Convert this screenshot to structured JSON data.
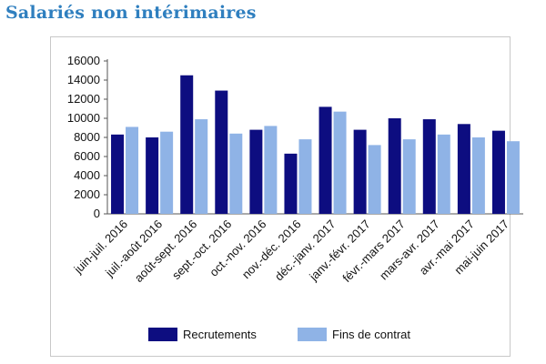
{
  "title": "Salariés non intérimaires",
  "chart_data": {
    "type": "bar",
    "categories": [
      "juin-juil. 2016",
      "juil.-août 2016",
      "août-sept. 2016",
      "sept.-oct. 2016",
      "oct.-nov. 2016",
      "nov.-déc. 2016",
      "déc.-janv. 2017",
      "janv.-févr. 2017",
      "févr.-mars 2017",
      "mars-avr. 2017",
      "avr.-mai 2017",
      "mai-juin 2017"
    ],
    "series": [
      {
        "name": "Recrutements",
        "color": "#0d0d80",
        "values": [
          8300,
          8000,
          14500,
          12900,
          8800,
          6300,
          11200,
          8800,
          10000,
          9900,
          9400,
          8700
        ]
      },
      {
        "name": "Fins de contrat",
        "color": "#8fb3e6",
        "values": [
          9100,
          8600,
          9900,
          8400,
          9200,
          7800,
          10700,
          7200,
          7800,
          8300,
          8000,
          7600
        ]
      }
    ],
    "ylim": [
      0,
      16000
    ],
    "yticks": [
      0,
      2000,
      4000,
      6000,
      8000,
      10000,
      12000,
      14000,
      16000
    ],
    "grid": false,
    "legend_position": "bottom"
  }
}
